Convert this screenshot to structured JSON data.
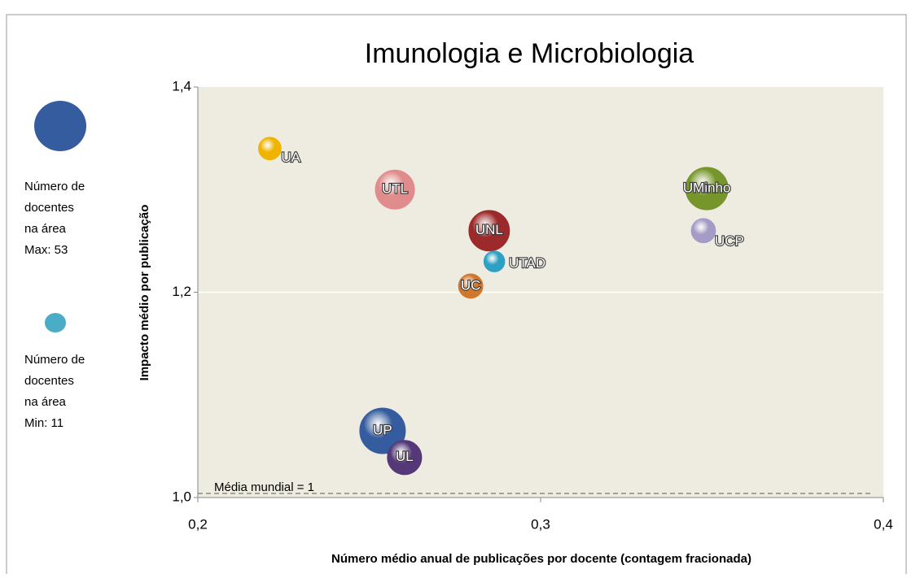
{
  "chart_data": {
    "type": "bubble",
    "title": "Imunologia e Microbiologia",
    "xlabel": "Número  médio anual de publicações por docente (contagem fracionada)",
    "ylabel": "Impacto médio por publicação",
    "xlim": [
      0.2,
      0.4
    ],
    "xticks": [
      {
        "value": 0.2,
        "label": "0,2"
      },
      {
        "value": 0.3,
        "label": "0,3"
      },
      {
        "value": 0.4,
        "label": "0,4"
      }
    ],
    "ylim": [
      1.0,
      1.4
    ],
    "yticks": [
      {
        "value": 1.0,
        "label": "1,0"
      },
      {
        "value": 1.2,
        "label": "1,2"
      },
      {
        "value": 1.4,
        "label": "1,4"
      }
    ],
    "grid": true,
    "reference_line": {
      "value": 1,
      "label": "Média mundial = 1"
    },
    "size_legend": [
      {
        "lines": [
          "Número de",
          "docentes",
          "na área",
          "Max: 53"
        ]
      },
      {
        "lines": [
          "Número de",
          "docentes",
          "na área",
          "Min: 11"
        ]
      }
    ],
    "points": [
      {
        "label": "UA",
        "x": 0.221,
        "y": 1.34,
        "size": 13,
        "color": "#f0b400"
      },
      {
        "label": "UTL",
        "x": 0.2575,
        "y": 1.3,
        "size": 39,
        "color": "#e08c8c"
      },
      {
        "label": "UNL",
        "x": 0.285,
        "y": 1.26,
        "size": 42,
        "color": "#9c2a2a"
      },
      {
        "label": "UTAD",
        "x": 0.2865,
        "y": 1.23,
        "size": 11,
        "color": "#2ea0c4"
      },
      {
        "label": "UC",
        "x": 0.2796,
        "y": 1.206,
        "size": 15,
        "color": "#d0772c"
      },
      {
        "label": "UMinho",
        "x": 0.3485,
        "y": 1.301,
        "size": 46,
        "color": "#76962c"
      },
      {
        "label": "UCP",
        "x": 0.3475,
        "y": 1.26,
        "size": 15,
        "color": "#a49cc6"
      },
      {
        "label": "UP",
        "x": 0.2539,
        "y": 1.065,
        "size": 53,
        "color": "#355c9e"
      },
      {
        "label": "UL",
        "x": 0.2603,
        "y": 1.039,
        "size": 30,
        "color": "#553878"
      }
    ]
  }
}
